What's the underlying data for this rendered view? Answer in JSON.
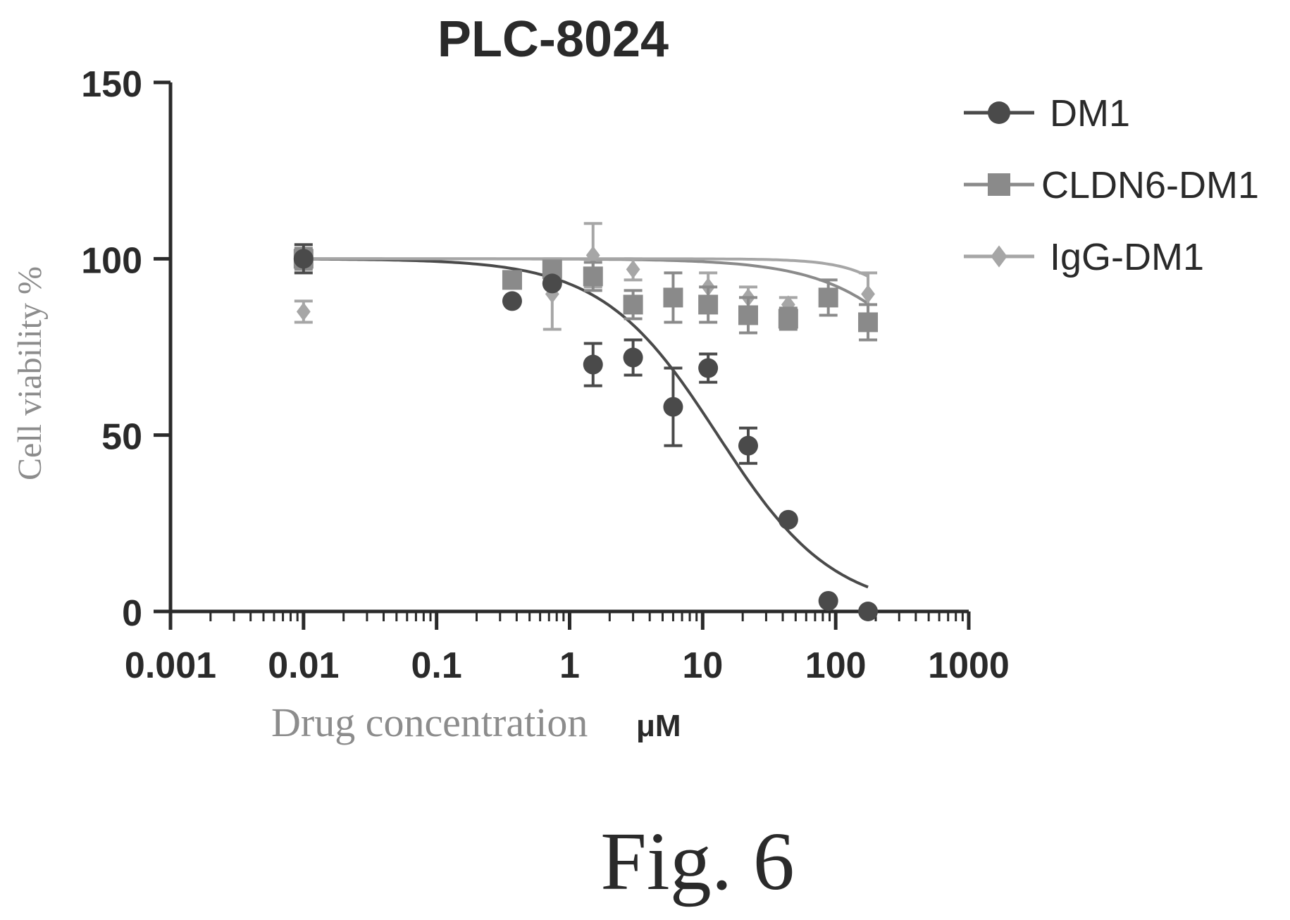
{
  "chart_data": {
    "type": "scatter",
    "title": "PLC-8024",
    "xlabel": "Drug concentration",
    "xlabel_unit": "μM",
    "ylabel": "Cell viability %",
    "x_scale": "log",
    "xlim": [
      0.001,
      1000
    ],
    "ylim": [
      0,
      150
    ],
    "x_ticks": [
      "0.001",
      "0.01",
      "0.1",
      "1",
      "10",
      "100",
      "1000"
    ],
    "y_ticks": [
      "0",
      "50",
      "100",
      "150"
    ],
    "grid": false,
    "legend_position": "top-right",
    "series": [
      {
        "name": "DM1",
        "marker": "circle",
        "color": "#4a4a4a",
        "points": [
          {
            "x": 0.01,
            "y": 100,
            "err": 4
          },
          {
            "x": 0.37,
            "y": 88,
            "err": 0
          },
          {
            "x": 0.74,
            "y": 93,
            "err": 0
          },
          {
            "x": 1.5,
            "y": 70,
            "err": 6
          },
          {
            "x": 3.0,
            "y": 72,
            "err": 5
          },
          {
            "x": 6.0,
            "y": 58,
            "err": 11
          },
          {
            "x": 11.0,
            "y": 69,
            "err": 4
          },
          {
            "x": 22.0,
            "y": 47,
            "err": 5
          },
          {
            "x": 44.0,
            "y": 26,
            "err": 0
          },
          {
            "x": 88.0,
            "y": 3,
            "err": 0
          },
          {
            "x": 175.0,
            "y": 0,
            "err": 0
          }
        ],
        "fit": {
          "top": 100,
          "bottom": 0,
          "ic50": 13,
          "hill": 1.0
        }
      },
      {
        "name": "CLDN6-DM1",
        "marker": "square",
        "color": "#8a8a8a",
        "points": [
          {
            "x": 0.01,
            "y": 100,
            "err": 3
          },
          {
            "x": 0.37,
            "y": 94,
            "err": 2
          },
          {
            "x": 0.74,
            "y": 97,
            "err": 2
          },
          {
            "x": 1.5,
            "y": 95,
            "err": 4
          },
          {
            "x": 3.0,
            "y": 87,
            "err": 4
          },
          {
            "x": 6.0,
            "y": 89,
            "err": 7
          },
          {
            "x": 11.0,
            "y": 87,
            "err": 5
          },
          {
            "x": 22.0,
            "y": 84,
            "err": 5
          },
          {
            "x": 44.0,
            "y": 83,
            "err": 3
          },
          {
            "x": 88.0,
            "y": 89,
            "err": 5
          },
          {
            "x": 175.0,
            "y": 82,
            "err": 5
          }
        ],
        "fit": {
          "top": 100,
          "bottom": 0,
          "ic50": 1200,
          "hill": 1.0
        }
      },
      {
        "name": "IgG-DM1",
        "marker": "diamond",
        "color": "#a6a6a6",
        "points": [
          {
            "x": 0.01,
            "y": 85,
            "err": 3
          },
          {
            "x": 0.74,
            "y": 90,
            "err": 10
          },
          {
            "x": 1.5,
            "y": 101,
            "err": 9
          },
          {
            "x": 3.0,
            "y": 97,
            "err": 3
          },
          {
            "x": 11.0,
            "y": 92,
            "err": 4
          },
          {
            "x": 22.0,
            "y": 89,
            "err": 3
          },
          {
            "x": 44.0,
            "y": 87,
            "err": 2
          },
          {
            "x": 175.0,
            "y": 90,
            "err": 6
          }
        ],
        "fit": {
          "top": 100,
          "bottom": 0,
          "ic50": 900,
          "hill": 1.8
        }
      }
    ]
  },
  "figure_caption": "Fig. 6"
}
